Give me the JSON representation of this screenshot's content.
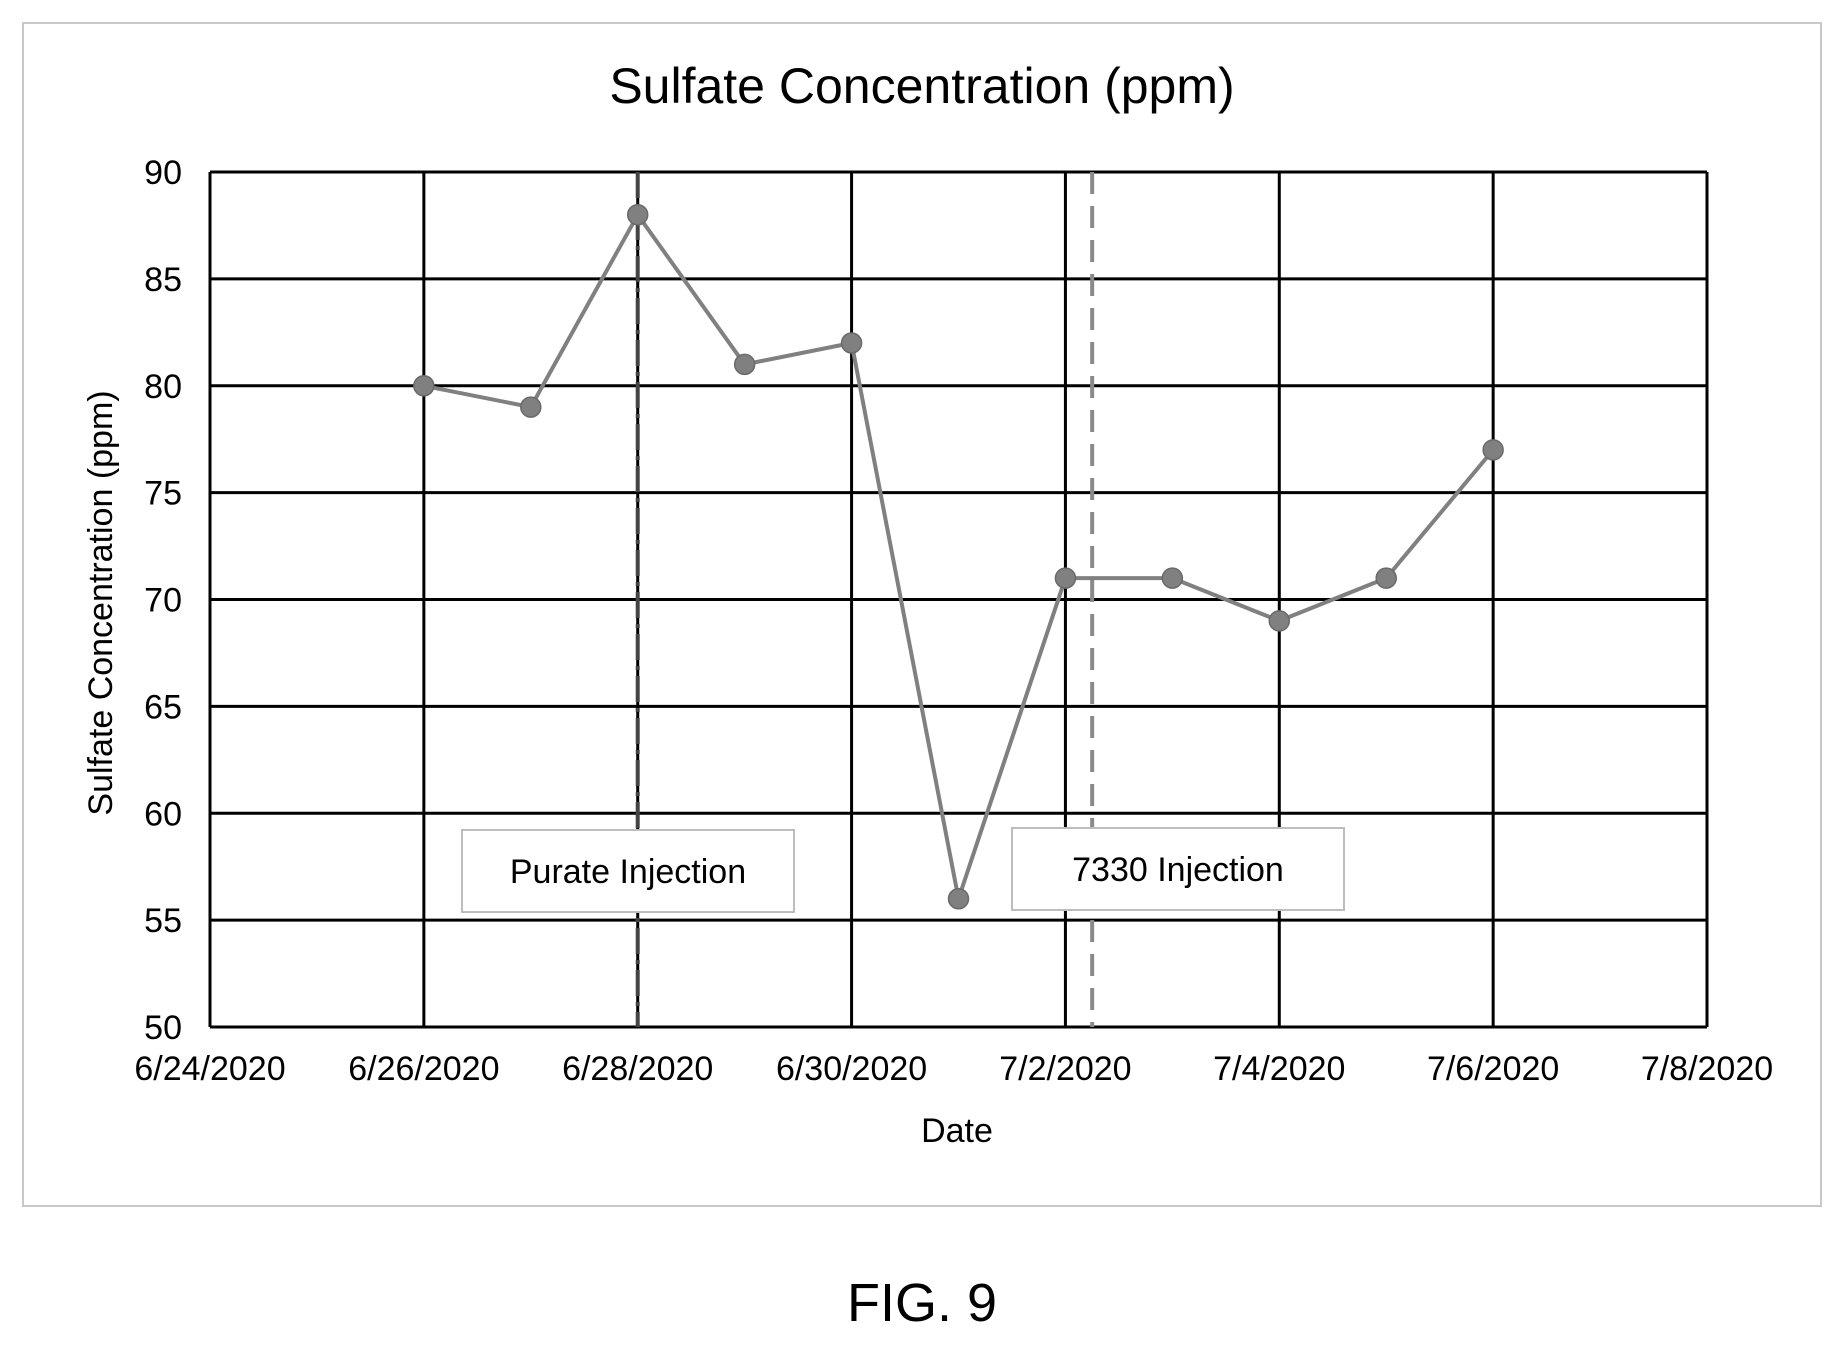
{
  "figure_label": "FIG. 9",
  "chart_data": {
    "type": "line",
    "title": "Sulfate Concentration (ppm)",
    "xlabel": "Date",
    "ylabel": "Sulfate Concentration (ppm)",
    "ylim": [
      50,
      90
    ],
    "yticks": [
      50,
      55,
      60,
      65,
      70,
      75,
      80,
      85,
      90
    ],
    "xlim": [
      "6/24/2020",
      "7/8/2020"
    ],
    "xticks": [
      "6/24/2020",
      "6/26/2020",
      "6/28/2020",
      "6/30/2020",
      "7/2/2020",
      "7/4/2020",
      "7/6/2020",
      "7/8/2020"
    ],
    "grid": true,
    "series": [
      {
        "color": "#808080",
        "points": [
          {
            "x": "6/26/2020",
            "y": 80
          },
          {
            "x": "6/27/2020",
            "y": 79
          },
          {
            "x": "6/28/2020",
            "y": 88
          },
          {
            "x": "6/29/2020",
            "y": 81
          },
          {
            "x": "6/30/2020",
            "y": 82
          },
          {
            "x": "7/1/2020",
            "y": 56
          },
          {
            "x": "7/2/2020",
            "y": 71
          },
          {
            "x": "7/3/2020",
            "y": 71
          },
          {
            "x": "7/4/2020",
            "y": 69
          },
          {
            "x": "7/5/2020",
            "y": 71
          },
          {
            "x": "7/6/2020",
            "y": 77
          }
        ]
      }
    ],
    "annotations": [
      {
        "label": "Purate Injection",
        "x": "6/28/2020",
        "line_style": "dash-dot",
        "line_color": "#444444"
      },
      {
        "label": "7330 Injection",
        "x": "7/2/2020 06:00",
        "line_style": "dashed",
        "line_color": "#8a8a8a"
      }
    ]
  }
}
